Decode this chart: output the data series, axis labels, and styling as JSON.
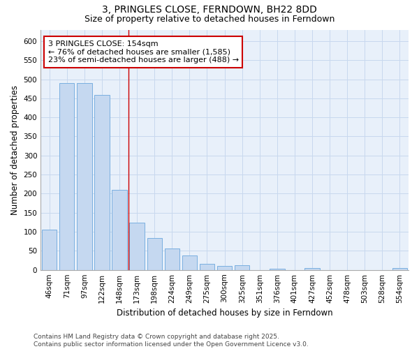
{
  "title": "3, PRINGLES CLOSE, FERNDOWN, BH22 8DD",
  "subtitle": "Size of property relative to detached houses in Ferndown",
  "xlabel": "Distribution of detached houses by size in Ferndown",
  "ylabel": "Number of detached properties",
  "categories": [
    "46sqm",
    "71sqm",
    "97sqm",
    "122sqm",
    "148sqm",
    "173sqm",
    "198sqm",
    "224sqm",
    "249sqm",
    "275sqm",
    "300sqm",
    "325sqm",
    "351sqm",
    "376sqm",
    "401sqm",
    "427sqm",
    "452sqm",
    "478sqm",
    "503sqm",
    "528sqm",
    "554sqm"
  ],
  "values": [
    105,
    490,
    490,
    458,
    210,
    123,
    83,
    57,
    37,
    15,
    10,
    12,
    0,
    3,
    0,
    5,
    0,
    0,
    0,
    0,
    5
  ],
  "bar_color": "#c5d8f0",
  "bar_edge_color": "#7aafe0",
  "bar_width": 0.85,
  "grid_color": "#c8d8ee",
  "background_color": "#e8f0fa",
  "red_line_x": 4.5,
  "annotation_text": "3 PRINGLES CLOSE: 154sqm\n← 76% of detached houses are smaller (1,585)\n23% of semi-detached houses are larger (488) →",
  "annotation_box_color": "white",
  "annotation_box_edge_color": "#cc0000",
  "ylim": [
    0,
    630
  ],
  "yticks": [
    0,
    50,
    100,
    150,
    200,
    250,
    300,
    350,
    400,
    450,
    500,
    550,
    600
  ],
  "footer_text": "Contains HM Land Registry data © Crown copyright and database right 2025.\nContains public sector information licensed under the Open Government Licence v3.0.",
  "title_fontsize": 10,
  "subtitle_fontsize": 9,
  "axis_label_fontsize": 8.5,
  "tick_fontsize": 7.5,
  "annotation_fontsize": 8,
  "footer_fontsize": 6.5
}
